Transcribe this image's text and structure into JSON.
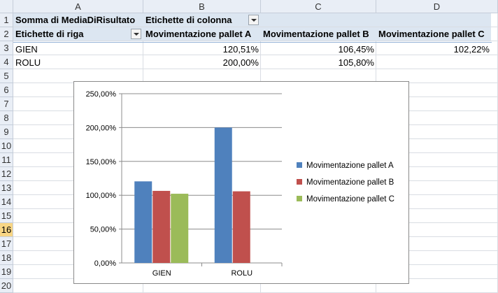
{
  "columns": [
    "A",
    "B",
    "C",
    "D"
  ],
  "rows": [
    "1",
    "2",
    "3",
    "4",
    "5",
    "6",
    "7",
    "8",
    "9",
    "10",
    "11",
    "12",
    "13",
    "14",
    "15",
    "16",
    "17",
    "18",
    "19",
    "20"
  ],
  "selected_row": "16",
  "pivot": {
    "values_label": "Somma di MediaDiRisultato",
    "col_labels_header": "Etichette di colonna",
    "row_labels_header": "Etichette di riga",
    "col_headers": [
      "Movimentazione pallet A",
      "Movimentazione pallet B",
      "Movimentazione pallet C"
    ],
    "data_rows": [
      {
        "label": "GIEN",
        "values": [
          "120,51%",
          "106,45%",
          "102,22%"
        ]
      },
      {
        "label": "ROLU",
        "values": [
          "200,00%",
          "105,80%",
          ""
        ]
      }
    ]
  },
  "chart_data": {
    "type": "bar",
    "categories": [
      "GIEN",
      "ROLU"
    ],
    "series": [
      {
        "name": "Movimentazione pallet A",
        "values": [
          120.51,
          200.0
        ],
        "color": "#4f81bd"
      },
      {
        "name": "Movimentazione pallet B",
        "values": [
          106.45,
          105.8
        ],
        "color": "#c0504d"
      },
      {
        "name": "Movimentazione pallet C",
        "values": [
          102.22,
          null
        ],
        "color": "#9bbb59"
      }
    ],
    "ylim": [
      0,
      250
    ],
    "yticks": [
      "0,00%",
      "50,00%",
      "100,00%",
      "150,00%",
      "200,00%",
      "250,00%"
    ],
    "grid": true,
    "legend": "right",
    "title": "",
    "xlabel": "",
    "ylabel": ""
  }
}
